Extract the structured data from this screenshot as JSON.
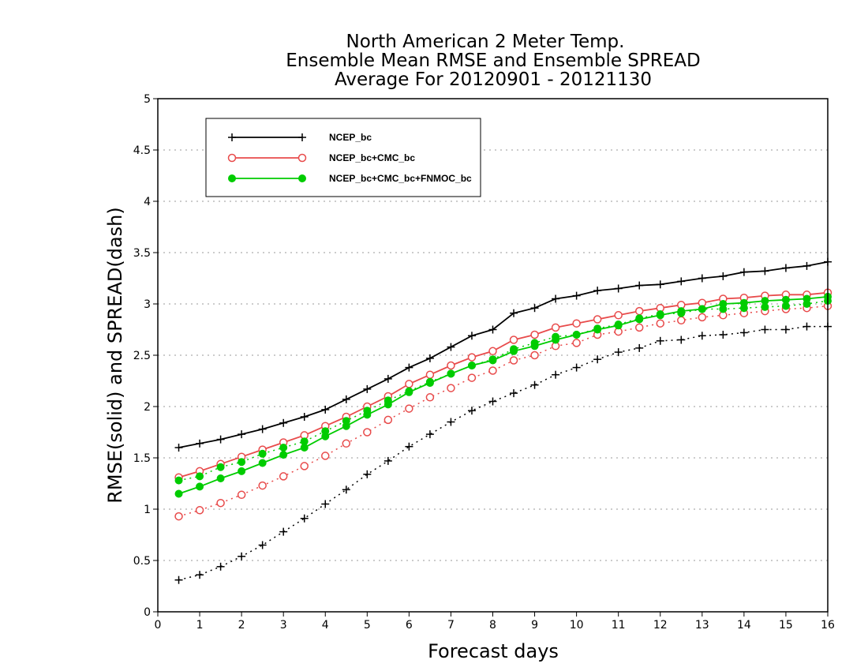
{
  "chart_data": {
    "type": "line",
    "title_lines": [
      "North American 2 Meter Temp.",
      "Ensemble Mean RMSE and Ensemble SPREAD",
      "Average For 20120901 - 20121130"
    ],
    "xlabel": "Forecast days",
    "ylabel": "RMSE(solid) and SPREAD(dash)",
    "xlim": [
      0,
      16
    ],
    "ylim": [
      0,
      5
    ],
    "x_ticks": [
      "0",
      "1",
      "2",
      "3",
      "4",
      "5",
      "6",
      "7",
      "8",
      "9",
      "10",
      "11",
      "12",
      "13",
      "14",
      "15",
      "16"
    ],
    "y_ticks": [
      "0",
      "0.5",
      "1",
      "1.5",
      "2",
      "2.5",
      "3",
      "3.5",
      "4",
      "4.5",
      "5"
    ],
    "grid": true,
    "legend_position": "top-left",
    "x": [
      0.5,
      1,
      1.5,
      2,
      2.5,
      3,
      3.5,
      4,
      4.5,
      5,
      5.5,
      6,
      6.5,
      7,
      7.5,
      8,
      8.5,
      9,
      9.5,
      10,
      10.5,
      11,
      11.5,
      12,
      12.5,
      13,
      13.5,
      14,
      14.5,
      15,
      15.5,
      16
    ],
    "series": [
      {
        "name": "NCEP_bc",
        "color": "#000000",
        "marker": "plus",
        "rmse": [
          1.6,
          1.64,
          1.68,
          1.73,
          1.78,
          1.84,
          1.9,
          1.97,
          2.07,
          2.17,
          2.27,
          2.38,
          2.47,
          2.58,
          2.69,
          2.75,
          2.91,
          2.96,
          3.05,
          3.08,
          3.13,
          3.15,
          3.18,
          3.19,
          3.22,
          3.25,
          3.27,
          3.31,
          3.32,
          3.35,
          3.37,
          3.41
        ],
        "spread": [
          0.31,
          0.36,
          0.44,
          0.54,
          0.65,
          0.78,
          0.91,
          1.05,
          1.19,
          1.34,
          1.47,
          1.61,
          1.73,
          1.85,
          1.96,
          2.05,
          2.13,
          2.21,
          2.31,
          2.38,
          2.46,
          2.53,
          2.57,
          2.64,
          2.65,
          2.69,
          2.7,
          2.72,
          2.75,
          2.75,
          2.78,
          2.78
        ]
      },
      {
        "name": "NCEP_bc+CMC_bc",
        "color": "#e84b4b",
        "marker": "open-circle",
        "rmse": [
          1.31,
          1.37,
          1.44,
          1.51,
          1.58,
          1.65,
          1.72,
          1.81,
          1.9,
          2.0,
          2.1,
          2.22,
          2.31,
          2.4,
          2.48,
          2.54,
          2.65,
          2.7,
          2.77,
          2.81,
          2.85,
          2.89,
          2.93,
          2.96,
          2.99,
          3.01,
          3.05,
          3.06,
          3.08,
          3.09,
          3.09,
          3.11
        ],
        "spread": [
          0.93,
          0.99,
          1.06,
          1.14,
          1.23,
          1.32,
          1.42,
          1.52,
          1.64,
          1.75,
          1.87,
          1.98,
          2.09,
          2.18,
          2.28,
          2.35,
          2.45,
          2.5,
          2.59,
          2.62,
          2.7,
          2.73,
          2.77,
          2.81,
          2.84,
          2.87,
          2.89,
          2.91,
          2.93,
          2.95,
          2.96,
          2.98
        ]
      },
      {
        "name": "NCEP_bc+CMC_bc+FNMOC_bc",
        "color": "#00cc00",
        "marker": "filled-circle",
        "rmse": [
          1.15,
          1.22,
          1.3,
          1.37,
          1.45,
          1.53,
          1.6,
          1.71,
          1.81,
          1.92,
          2.02,
          2.14,
          2.23,
          2.32,
          2.4,
          2.45,
          2.54,
          2.59,
          2.65,
          2.7,
          2.75,
          2.79,
          2.85,
          2.89,
          2.93,
          2.95,
          3.0,
          3.01,
          3.03,
          3.04,
          3.05,
          3.07
        ],
        "spread": [
          1.28,
          1.32,
          1.41,
          1.46,
          1.54,
          1.6,
          1.66,
          1.76,
          1.86,
          1.96,
          2.06,
          2.15,
          2.24,
          2.32,
          2.4,
          2.46,
          2.56,
          2.62,
          2.68,
          2.7,
          2.76,
          2.8,
          2.86,
          2.9,
          2.91,
          2.95,
          2.95,
          2.96,
          2.97,
          2.98,
          3.0,
          3.03
        ]
      }
    ]
  }
}
